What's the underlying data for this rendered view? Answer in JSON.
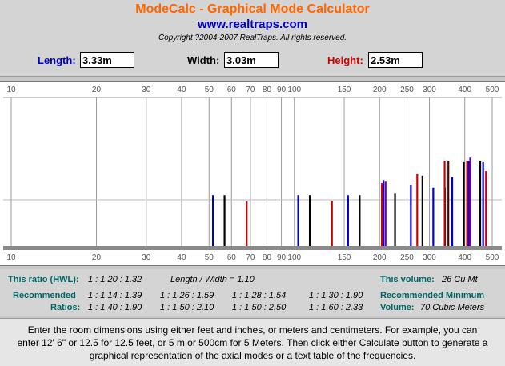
{
  "header": {
    "title": "ModeCalc - Graphical Mode Calculator",
    "site": "www.realtraps.com",
    "copyright": "Copyright ?2004-2007 RealTraps. All rights reserved."
  },
  "inputs": {
    "length": {
      "label": "Length:",
      "value": "3.33m",
      "color": "#0000cc"
    },
    "width": {
      "label": "Width:",
      "value": "3.03m",
      "color": "#000000"
    },
    "height": {
      "label": "Height:",
      "value": "2.53m",
      "color": "#cc0000"
    }
  },
  "chart_data": {
    "type": "bar",
    "x_scale": "log",
    "xlim": [
      10,
      500
    ],
    "ticks": [
      10,
      20,
      30,
      40,
      50,
      60,
      70,
      80,
      90,
      100,
      150,
      200,
      250,
      300,
      400,
      500
    ],
    "tick_labels": [
      "10",
      "20",
      "30",
      "40",
      "50",
      "60",
      "70",
      "80",
      "90",
      "100",
      "150",
      "200",
      "250",
      "300",
      "400",
      "500"
    ],
    "series": [
      {
        "color": "#0000cc",
        "modes": [
          {
            "hz": 51.6,
            "level": 0.35
          },
          {
            "hz": 103.2,
            "level": 0.35
          },
          {
            "hz": 154.8,
            "level": 0.35
          },
          {
            "hz": 206.4,
            "level": 0.45
          },
          {
            "hz": 258,
            "level": 0.42
          },
          {
            "hz": 309.6,
            "level": 0.4
          },
          {
            "hz": 361.2,
            "level": 0.47
          },
          {
            "hz": 412.8,
            "level": 0.58
          },
          {
            "hz": 464.4,
            "level": 0.57
          }
        ]
      },
      {
        "color": "#000000",
        "modes": [
          {
            "hz": 56.7,
            "level": 0.35
          },
          {
            "hz": 113.4,
            "level": 0.35
          },
          {
            "hz": 170.1,
            "level": 0.35
          },
          {
            "hz": 226.8,
            "level": 0.36
          },
          {
            "hz": 283.5,
            "level": 0.48
          },
          {
            "hz": 340.2,
            "level": 0.4
          },
          {
            "hz": 396.9,
            "level": 0.57
          },
          {
            "hz": 453.6,
            "level": 0.58
          }
        ]
      },
      {
        "color": "#cc0000",
        "modes": [
          {
            "hz": 67.9,
            "level": 0.31
          },
          {
            "hz": 135.8,
            "level": 0.31
          },
          {
            "hz": 203.8,
            "level": 0.43
          },
          {
            "hz": 271.7,
            "level": 0.49
          },
          {
            "hz": 339.6,
            "level": 0.58
          },
          {
            "hz": 407.5,
            "level": 0.58
          },
          {
            "hz": 475.4,
            "level": 0.51
          }
        ]
      },
      {
        "color": "#6600aa",
        "modes": [
          {
            "hz": 210,
            "level": 0.44
          },
          {
            "hz": 418,
            "level": 0.6
          }
        ]
      },
      {
        "color": "#550000",
        "modes": [
          {
            "hz": 350,
            "level": 0.58
          }
        ]
      }
    ]
  },
  "info": {
    "ratio_label": "This ratio (HWL):",
    "ratio_value": "1 : 1.20 : 1.32",
    "lw_text": "Length / Width = 1.10",
    "volume_label": "This volume:",
    "volume_value": "26 Cu Mt",
    "recommended_label": "Recommended",
    "ratios_label": "Ratios:",
    "recommended_row1": [
      "1 : 1.14 : 1.39",
      "1 : 1.26 : 1.59",
      "1 : 1.28 : 1.54",
      "1 : 1.30 : 1.90"
    ],
    "recommended_row2": [
      "1 : 1.40 : 1.90",
      "1 : 1.50 : 2.10",
      "1 : 1.50 : 2.50",
      "1 : 1.60 : 2.33"
    ],
    "rec_min_label": "Recommended Minimum",
    "rec_vol_label": "Volume:",
    "rec_vol_value": "70 Cubic Meters"
  },
  "instructions": "Enter the room dimensions using either feet and inches, or meters and centimeters. For example, you can enter 12' 6\" or 12.5 for 12.5 feet, or 5 m or 500cm for 5 Meters. Then click either Calculate button to generate a graphical representation of the axial modes or a text table of the frequencies."
}
